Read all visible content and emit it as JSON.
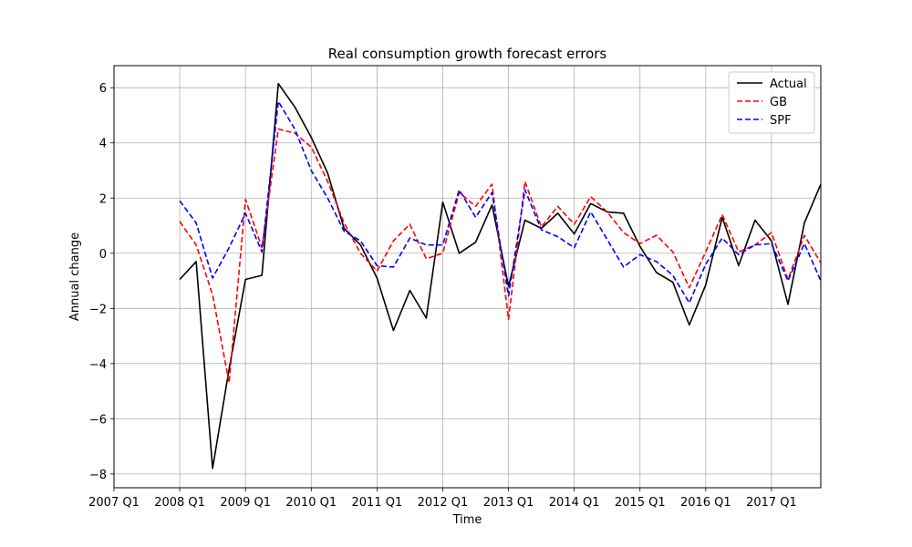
{
  "chart_data": {
    "type": "line",
    "title": "Real consumption growth forecast errors",
    "xlabel": "Time",
    "ylabel": "Annual change",
    "x_ticks": [
      "2007 Q1",
      "2008 Q1",
      "2009 Q1",
      "2010 Q1",
      "2011 Q1",
      "2012 Q1",
      "2013 Q1",
      "2014 Q1",
      "2015 Q1",
      "2016 Q1",
      "2017 Q1"
    ],
    "y_ticks": [
      -8,
      -6,
      -4,
      -2,
      0,
      2,
      4,
      6
    ],
    "xlim": [
      "2007 Q1",
      "2017 Q4"
    ],
    "ylim": [
      -8.5,
      6.8
    ],
    "grid": true,
    "legend_position": "top-right",
    "x": [
      "2008 Q1",
      "2008 Q2",
      "2008 Q3",
      "2008 Q4",
      "2009 Q1",
      "2009 Q2",
      "2009 Q3",
      "2009 Q4",
      "2010 Q1",
      "2010 Q2",
      "2010 Q3",
      "2010 Q4",
      "2011 Q1",
      "2011 Q2",
      "2011 Q3",
      "2011 Q4",
      "2012 Q1",
      "2012 Q2",
      "2012 Q3",
      "2012 Q4",
      "2013 Q1",
      "2013 Q2",
      "2013 Q3",
      "2013 Q4",
      "2014 Q1",
      "2014 Q2",
      "2014 Q3",
      "2014 Q4",
      "2015 Q1",
      "2015 Q2",
      "2015 Q3",
      "2015 Q4",
      "2016 Q1",
      "2016 Q2",
      "2016 Q3",
      "2016 Q4",
      "2017 Q1",
      "2017 Q2",
      "2017 Q3",
      "2017 Q4"
    ],
    "series": [
      {
        "name": "Actual",
        "color": "#000000",
        "style": "solid",
        "values": [
          -0.95,
          -0.3,
          -7.8,
          -4.2,
          -0.95,
          -0.8,
          6.15,
          5.3,
          4.2,
          2.9,
          0.9,
          0.3,
          -0.9,
          -2.8,
          -1.35,
          -2.35,
          1.85,
          0.0,
          0.4,
          1.75,
          -1.2,
          1.2,
          0.9,
          1.45,
          0.7,
          1.8,
          1.5,
          1.45,
          0.25,
          -0.7,
          -1.05,
          -2.6,
          -1.15,
          1.3,
          -0.45,
          1.2,
          0.45,
          -1.85,
          1.1,
          2.5
        ]
      },
      {
        "name": "GB",
        "color": "#ff0000",
        "style": "dashed",
        "values": [
          1.15,
          0.3,
          -1.5,
          -4.7,
          1.95,
          0.2,
          4.5,
          4.35,
          3.85,
          2.6,
          1.1,
          0.0,
          -0.65,
          0.45,
          1.05,
          -0.2,
          0.0,
          2.2,
          1.7,
          2.5,
          -2.4,
          2.6,
          0.95,
          1.7,
          1.05,
          2.05,
          1.5,
          0.75,
          0.35,
          0.65,
          0.05,
          -1.25,
          0.05,
          1.4,
          0.05,
          0.3,
          0.75,
          -0.95,
          0.65,
          -0.35
        ]
      },
      {
        "name": "SPF",
        "color": "#0000ff",
        "style": "dashed",
        "values": [
          1.9,
          1.1,
          -0.9,
          0.2,
          1.45,
          0.05,
          5.5,
          4.5,
          3.0,
          2.0,
          0.8,
          0.45,
          -0.45,
          -0.5,
          0.55,
          0.3,
          0.3,
          2.3,
          1.3,
          2.2,
          -1.55,
          2.3,
          0.85,
          0.6,
          0.2,
          1.5,
          0.5,
          -0.5,
          -0.05,
          -0.3,
          -0.8,
          -1.8,
          -0.4,
          0.55,
          -0.05,
          0.3,
          0.35,
          -1.0,
          0.35,
          -1.0
        ]
      }
    ]
  }
}
